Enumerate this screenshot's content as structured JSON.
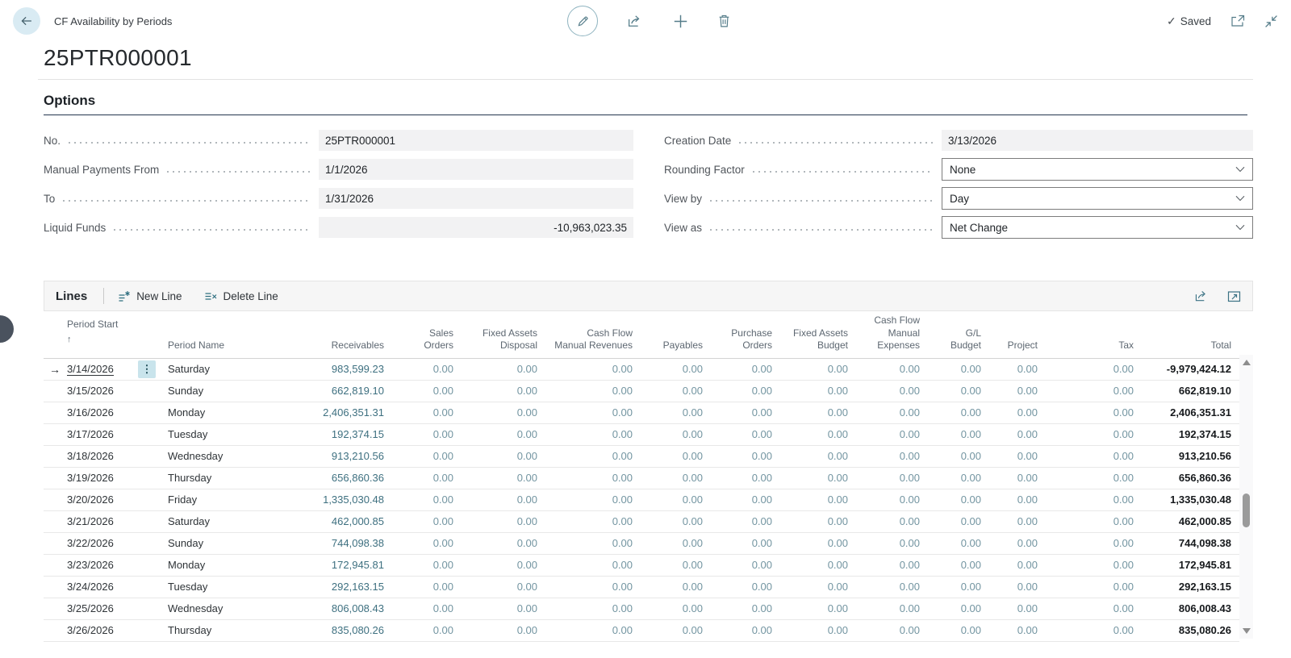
{
  "header": {
    "app_title": "CF Availability by Periods",
    "page_title": "25PTR000001",
    "save_status": "Saved",
    "icons": [
      "back-icon",
      "edit-pencil-icon",
      "share-icon",
      "plus-icon",
      "trash-icon",
      "popout-icon",
      "collapse-icon"
    ]
  },
  "options": {
    "section_title": "Options",
    "fields_left": [
      {
        "label": "No.",
        "value": "25PTR000001",
        "type": "readonly",
        "align": "left"
      },
      {
        "label": "Manual Payments From",
        "value": "1/1/2026",
        "type": "readonly",
        "align": "left"
      },
      {
        "label": "To",
        "value": "1/31/2026",
        "type": "readonly",
        "align": "left"
      },
      {
        "label": "Liquid Funds",
        "value": "-10,963,023.35",
        "type": "readonly",
        "align": "right"
      }
    ],
    "fields_right": [
      {
        "label": "Creation Date",
        "value": "3/13/2026",
        "type": "readonly",
        "align": "left"
      },
      {
        "label": "Rounding Factor",
        "value": "None",
        "type": "select"
      },
      {
        "label": "View by",
        "value": "Day",
        "type": "select"
      },
      {
        "label": "View as",
        "value": "Net Change",
        "type": "select"
      }
    ]
  },
  "lines": {
    "section_title": "Lines",
    "actions": [
      {
        "label": "New Line",
        "icon": "new-line-icon"
      },
      {
        "label": "Delete Line",
        "icon": "delete-line-icon"
      }
    ],
    "toolbar_icons": [
      "share-icon",
      "expand-icon"
    ],
    "columns": [
      {
        "label": "Period Start",
        "align": "left",
        "sort": "asc"
      },
      {
        "label": "Period Name",
        "align": "left"
      },
      {
        "label": "Receivables",
        "align": "right"
      },
      {
        "label": "Sales Orders",
        "align": "right"
      },
      {
        "label": "Fixed Assets Disposal",
        "align": "right"
      },
      {
        "label": "Cash Flow Manual Revenues",
        "align": "right"
      },
      {
        "label": "Payables",
        "align": "right"
      },
      {
        "label": "Purchase Orders",
        "align": "right"
      },
      {
        "label": "Fixed Assets Budget",
        "align": "right"
      },
      {
        "label": "Cash Flow Manual Expenses",
        "align": "right"
      },
      {
        "label": "G/L Budget",
        "align": "right"
      },
      {
        "label": "Project",
        "align": "right"
      },
      {
        "label": "Tax",
        "align": "right"
      },
      {
        "label": "Total",
        "align": "right"
      }
    ],
    "rows": [
      {
        "selected": true,
        "cells": [
          "3/14/2026",
          "Saturday",
          "983,599.23",
          "0.00",
          "0.00",
          "0.00",
          "0.00",
          "0.00",
          "0.00",
          "0.00",
          "0.00",
          "0.00",
          "0.00",
          "-9,979,424.12"
        ]
      },
      {
        "selected": false,
        "cells": [
          "3/15/2026",
          "Sunday",
          "662,819.10",
          "0.00",
          "0.00",
          "0.00",
          "0.00",
          "0.00",
          "0.00",
          "0.00",
          "0.00",
          "0.00",
          "0.00",
          "662,819.10"
        ]
      },
      {
        "selected": false,
        "cells": [
          "3/16/2026",
          "Monday",
          "2,406,351.31",
          "0.00",
          "0.00",
          "0.00",
          "0.00",
          "0.00",
          "0.00",
          "0.00",
          "0.00",
          "0.00",
          "0.00",
          "2,406,351.31"
        ]
      },
      {
        "selected": false,
        "cells": [
          "3/17/2026",
          "Tuesday",
          "192,374.15",
          "0.00",
          "0.00",
          "0.00",
          "0.00",
          "0.00",
          "0.00",
          "0.00",
          "0.00",
          "0.00",
          "0.00",
          "192,374.15"
        ]
      },
      {
        "selected": false,
        "cells": [
          "3/18/2026",
          "Wednesday",
          "913,210.56",
          "0.00",
          "0.00",
          "0.00",
          "0.00",
          "0.00",
          "0.00",
          "0.00",
          "0.00",
          "0.00",
          "0.00",
          "913,210.56"
        ]
      },
      {
        "selected": false,
        "cells": [
          "3/19/2026",
          "Thursday",
          "656,860.36",
          "0.00",
          "0.00",
          "0.00",
          "0.00",
          "0.00",
          "0.00",
          "0.00",
          "0.00",
          "0.00",
          "0.00",
          "656,860.36"
        ]
      },
      {
        "selected": false,
        "cells": [
          "3/20/2026",
          "Friday",
          "1,335,030.48",
          "0.00",
          "0.00",
          "0.00",
          "0.00",
          "0.00",
          "0.00",
          "0.00",
          "0.00",
          "0.00",
          "0.00",
          "1,335,030.48"
        ]
      },
      {
        "selected": false,
        "cells": [
          "3/21/2026",
          "Saturday",
          "462,000.85",
          "0.00",
          "0.00",
          "0.00",
          "0.00",
          "0.00",
          "0.00",
          "0.00",
          "0.00",
          "0.00",
          "0.00",
          "462,000.85"
        ]
      },
      {
        "selected": false,
        "cells": [
          "3/22/2026",
          "Sunday",
          "744,098.38",
          "0.00",
          "0.00",
          "0.00",
          "0.00",
          "0.00",
          "0.00",
          "0.00",
          "0.00",
          "0.00",
          "0.00",
          "744,098.38"
        ]
      },
      {
        "selected": false,
        "cells": [
          "3/23/2026",
          "Monday",
          "172,945.81",
          "0.00",
          "0.00",
          "0.00",
          "0.00",
          "0.00",
          "0.00",
          "0.00",
          "0.00",
          "0.00",
          "0.00",
          "172,945.81"
        ]
      },
      {
        "selected": false,
        "cells": [
          "3/24/2026",
          "Tuesday",
          "292,163.15",
          "0.00",
          "0.00",
          "0.00",
          "0.00",
          "0.00",
          "0.00",
          "0.00",
          "0.00",
          "0.00",
          "0.00",
          "292,163.15"
        ]
      },
      {
        "selected": false,
        "cells": [
          "3/25/2026",
          "Wednesday",
          "806,008.43",
          "0.00",
          "0.00",
          "0.00",
          "0.00",
          "0.00",
          "0.00",
          "0.00",
          "0.00",
          "0.00",
          "0.00",
          "806,008.43"
        ]
      },
      {
        "selected": false,
        "cells": [
          "3/26/2026",
          "Thursday",
          "835,080.26",
          "0.00",
          "0.00",
          "0.00",
          "0.00",
          "0.00",
          "0.00",
          "0.00",
          "0.00",
          "0.00",
          "0.00",
          "835,080.26"
        ]
      }
    ]
  },
  "colors": {
    "accent_teal": "#3e7080",
    "icon_teal": "#2f6f80",
    "heading_underline": "#24364e",
    "readonly_bg": "#f2f2f3",
    "toolbar_bg": "#f6f6f6",
    "selected_menu_bg": "#c9e4ec",
    "back_circle_bg": "#d9ebf3"
  }
}
